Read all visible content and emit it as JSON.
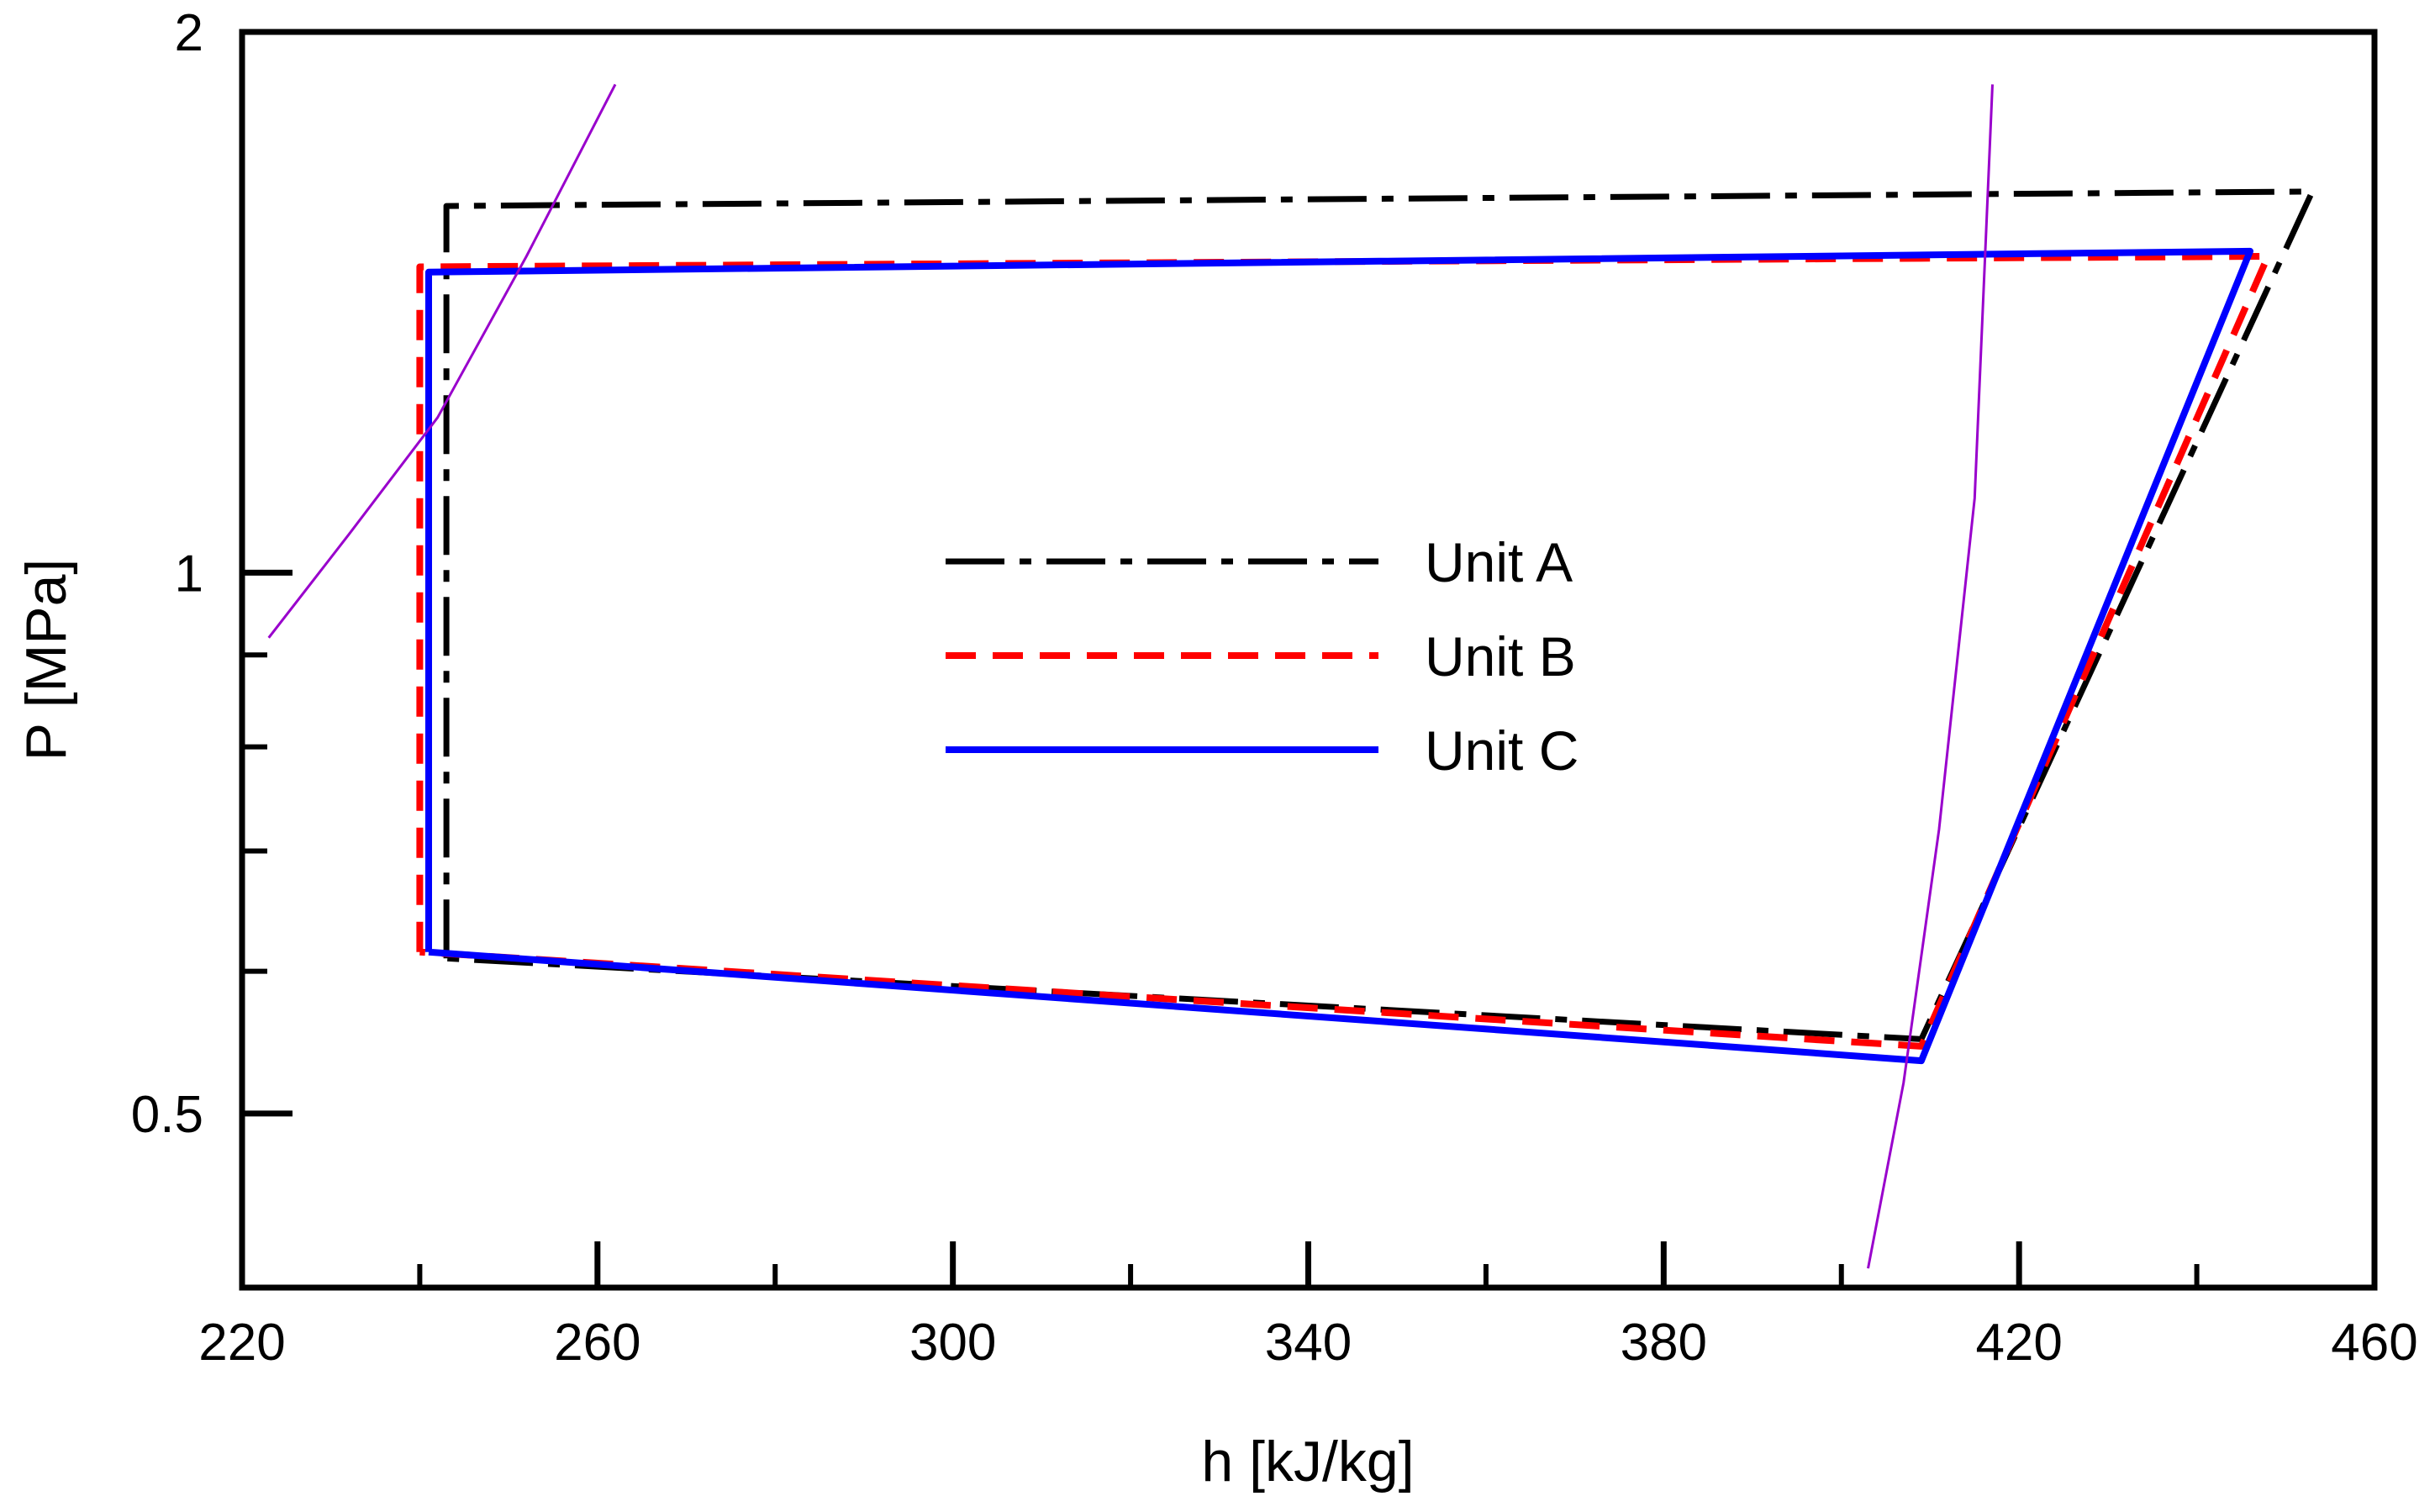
{
  "chart_data": {
    "type": "line",
    "title": "",
    "xlabel": "h  [kJ/kg]",
    "ylabel": "P [MPa]",
    "xlim": [
      220,
      460
    ],
    "ylim": [
      0.4,
      2
    ],
    "yscale": "log",
    "grid": false,
    "legend_position": "center",
    "x_ticks": [
      {
        "value": 220,
        "label": "220"
      },
      {
        "value": 260,
        "label": "260"
      },
      {
        "value": 300,
        "label": "300"
      },
      {
        "value": 340,
        "label": "340"
      },
      {
        "value": 380,
        "label": "380"
      },
      {
        "value": 420,
        "label": "420"
      },
      {
        "value": 460,
        "label": "460"
      }
    ],
    "x_minor_ticks": [
      240,
      280,
      320,
      360,
      400,
      440
    ],
    "y_ticks": [
      {
        "value": 0.5,
        "label": "0.5"
      },
      {
        "value": 1,
        "label": "1"
      },
      {
        "value": 2,
        "label": "2"
      }
    ],
    "y_minor_ticks": [
      0.6,
      0.7,
      0.8,
      0.9
    ],
    "series": [
      {
        "name": "Unit A",
        "color": "#000000",
        "style": "dash-dot",
        "x": [
          243,
          243,
          453,
          409,
          243
        ],
        "y": [
          0.61,
          1.6,
          1.63,
          0.55,
          0.61
        ]
      },
      {
        "name": "Unit B",
        "color": "#ff0000",
        "style": "dashed",
        "x": [
          240,
          240,
          448,
          409,
          240
        ],
        "y": [
          0.615,
          1.48,
          1.5,
          0.545,
          0.615
        ]
      },
      {
        "name": "Unit C",
        "color": "#0000ff",
        "style": "solid",
        "x": [
          241,
          241,
          446,
          409,
          241
        ],
        "y": [
          0.615,
          1.47,
          1.51,
          0.535,
          0.615
        ]
      },
      {
        "color": "#9900cc",
        "style": "thin",
        "x": [
          223,
          232,
          242,
          252,
          262
        ],
        "y": [
          0.92,
          1.05,
          1.22,
          1.5,
          1.87
        ]
      },
      {
        "color": "#9900cc",
        "style": "thin",
        "x": [
          403,
          407,
          411,
          415,
          417
        ],
        "y": [
          0.41,
          0.52,
          0.72,
          1.1,
          1.87
        ]
      }
    ]
  }
}
